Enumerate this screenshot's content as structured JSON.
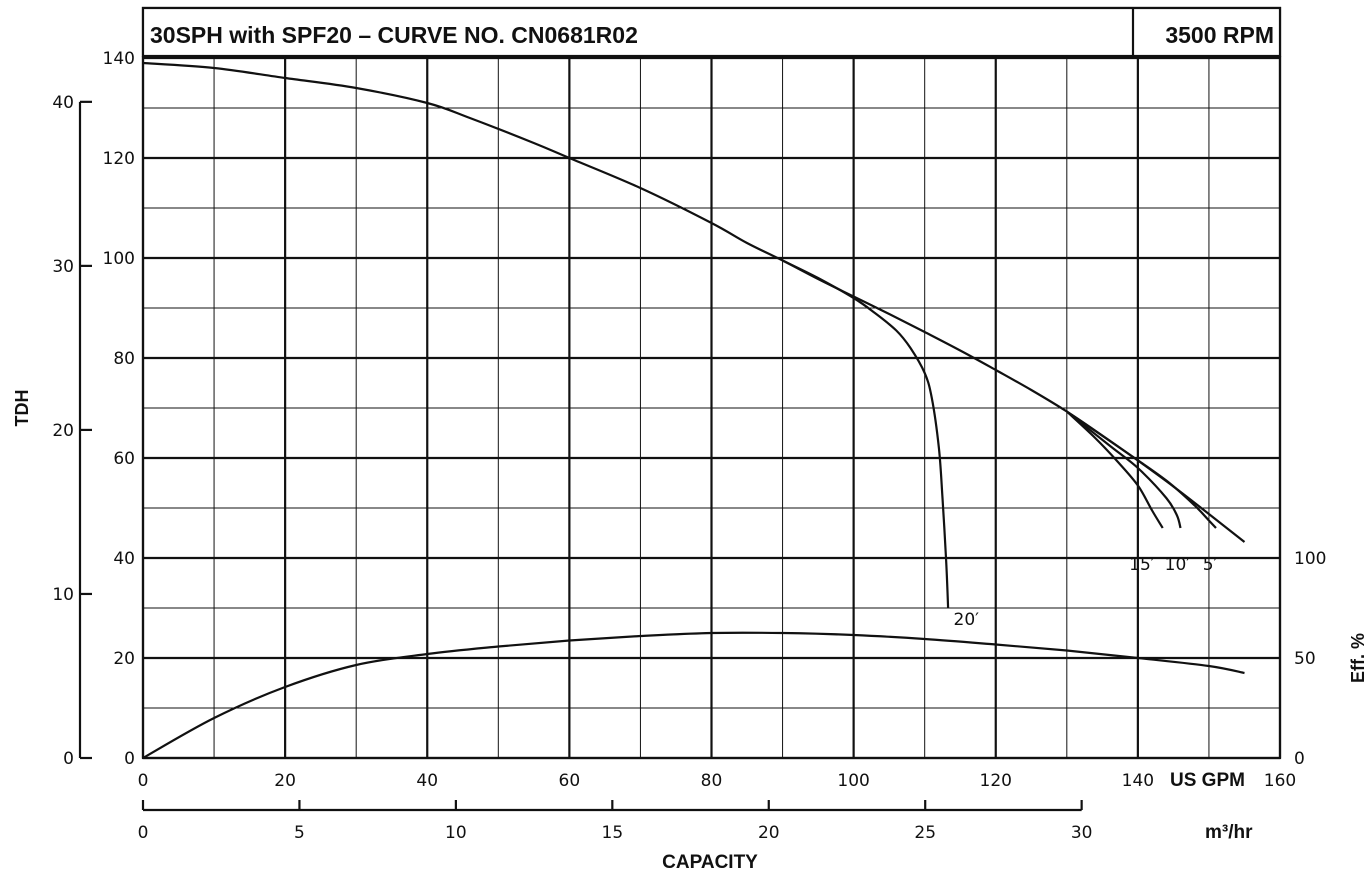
{
  "chart_data": {
    "type": "line",
    "title": "30SPH with SPF20 – CURVE NO. CN0681R02",
    "speed_label": "3500 RPM",
    "xlabel": "CAPACITY",
    "x_unit_gpm": "US GPM",
    "x_unit_m3hr": "m³/hr",
    "ylabel_left": "TDH",
    "ylabel_right": "Eff. %",
    "x_gpm_range": [
      0,
      160
    ],
    "x_gpm_ticks": [
      "0",
      "20",
      "40",
      "60",
      "80",
      "100",
      "120",
      "140",
      "160"
    ],
    "x_m3hr_ticks": [
      "0",
      "5",
      "10",
      "15",
      "20",
      "25",
      "30"
    ],
    "y_ft_range": [
      0,
      140
    ],
    "y_ft_ticks": [
      "0",
      "20",
      "40",
      "60",
      "80",
      "100",
      "120",
      "140"
    ],
    "y_m_ticks": [
      "0",
      "10",
      "20",
      "30",
      "40"
    ],
    "eff_ticks": [
      "0",
      "50",
      "100"
    ],
    "grid": true,
    "series": [
      {
        "name": "",
        "kind": "head",
        "x": [
          0,
          10,
          20,
          30,
          40,
          46,
          55,
          60,
          70,
          80,
          85,
          90,
          95,
          100,
          105,
          110,
          115,
          120,
          125,
          130,
          135,
          140,
          145,
          150,
          155
        ],
        "y": [
          139,
          138,
          136,
          134,
          131,
          128,
          123,
          120,
          114,
          107,
          103,
          99.5,
          95.8,
          92.3,
          88.8,
          85.2,
          81.5,
          77.6,
          73.6,
          69.3,
          64.5,
          59.5,
          54.3,
          48.8,
          43.2
        ]
      },
      {
        "name": "20′",
        "kind": "npsh-limit",
        "x": [
          90,
          95,
          100,
          103,
          106,
          108,
          110,
          111,
          112,
          112.5,
          113,
          113.3
        ],
        "y": [
          99.5,
          96.0,
          92.0,
          89.0,
          85.5,
          82.0,
          77.0,
          72.0,
          62.0,
          52.0,
          40.0,
          30.0
        ]
      },
      {
        "name": "15′",
        "kind": "npsh-limit",
        "x": [
          130,
          134,
          137,
          140,
          142,
          143.5
        ],
        "y": [
          69.3,
          64.0,
          59.5,
          54.5,
          49.5,
          46.0
        ]
      },
      {
        "name": "10′",
        "kind": "npsh-limit",
        "x": [
          130,
          136,
          140,
          144,
          145.5,
          146
        ],
        "y": [
          69.3,
          62.5,
          58.0,
          52.0,
          48.5,
          46.0
        ]
      },
      {
        "name": "5′",
        "kind": "npsh-limit",
        "x": [
          130,
          138,
          144,
          148,
          150,
          151
        ],
        "y": [
          69.3,
          61.5,
          55.5,
          50.5,
          47.5,
          46.0
        ]
      },
      {
        "name": "",
        "kind": "efficiency",
        "x": [
          0,
          10,
          20,
          30,
          40,
          50,
          60,
          70,
          80,
          90,
          100,
          110,
          120,
          130,
          140,
          150,
          155
        ],
        "y": [
          0,
          8,
          14.2,
          18.6,
          20.8,
          22.3,
          23.5,
          24.4,
          25.0,
          25.0,
          24.6,
          23.8,
          22.7,
          21.5,
          20.0,
          18.4,
          17.0
        ]
      }
    ],
    "curve_labels": [
      "20′",
      "15′",
      "10′",
      "5′"
    ]
  }
}
